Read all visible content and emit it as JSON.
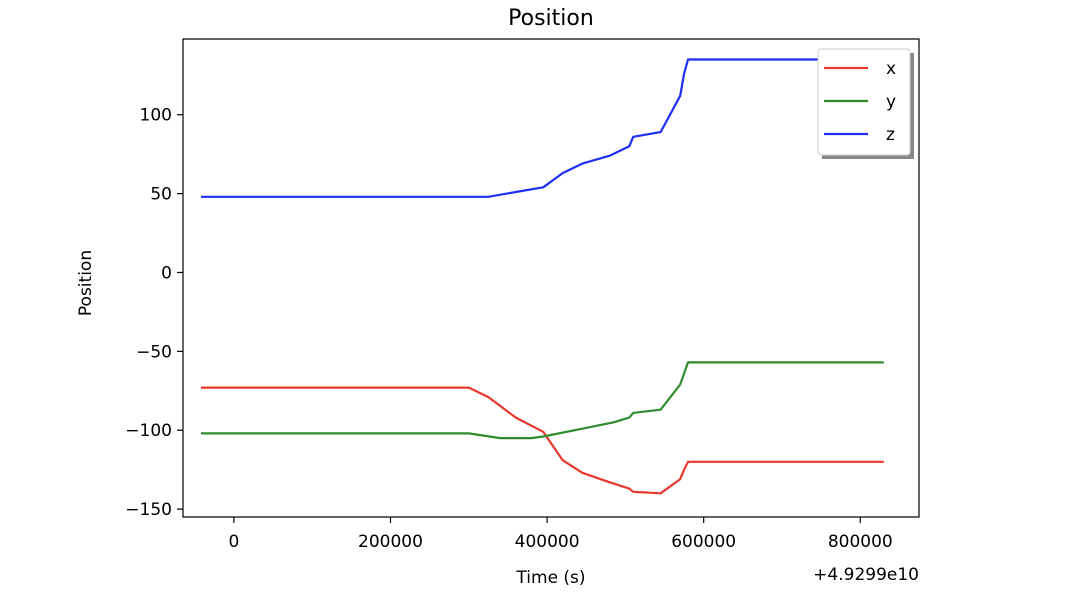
{
  "chart_data": {
    "type": "line",
    "title": "Position",
    "xlabel": "Time (s)",
    "ylabel": "Position",
    "x_offset_label": "+4.9299e10",
    "xlim": [
      -65000,
      875000
    ],
    "ylim": [
      -155,
      148
    ],
    "x_ticks": [
      0,
      200000,
      400000,
      600000,
      800000
    ],
    "x_tick_labels": [
      "0",
      "200000",
      "400000",
      "600000",
      "800000"
    ],
    "y_ticks": [
      100,
      50,
      0,
      -50,
      -100,
      -150
    ],
    "y_tick_labels": [
      "100",
      "50",
      "0",
      "−50",
      "−100",
      "−150"
    ],
    "grid": false,
    "legend_position": "top-right",
    "series": [
      {
        "name": "x",
        "color": "#e8372c",
        "x": [
          -42000,
          300000,
          325000,
          360000,
          395000,
          420000,
          445000,
          480000,
          505000,
          510000,
          545000,
          570000,
          575000,
          580000,
          830000
        ],
        "y": [
          -73,
          -73,
          -79,
          -92,
          -101,
          -119,
          -127,
          -133,
          -137,
          -139,
          -140,
          -131,
          -125,
          -120,
          -120
        ]
      },
      {
        "name": "y",
        "color": "#2e8b2e",
        "x": [
          -42000,
          300000,
          340000,
          380000,
          395000,
          445000,
          485000,
          505000,
          510000,
          545000,
          570000,
          580000,
          830000
        ],
        "y": [
          -102,
          -102,
          -105,
          -105,
          -104,
          -99,
          -95,
          -92,
          -89,
          -87,
          -71,
          -57,
          -57
        ]
      },
      {
        "name": "z",
        "color": "#1f2ff5",
        "x": [
          -42000,
          300000,
          325000,
          360000,
          395000,
          420000,
          445000,
          480000,
          505000,
          510000,
          545000,
          570000,
          575000,
          580000,
          830000
        ],
        "y": [
          48,
          48,
          48,
          51,
          54,
          63,
          69,
          74,
          80,
          86,
          89,
          112,
          126,
          135,
          135
        ]
      }
    ]
  }
}
